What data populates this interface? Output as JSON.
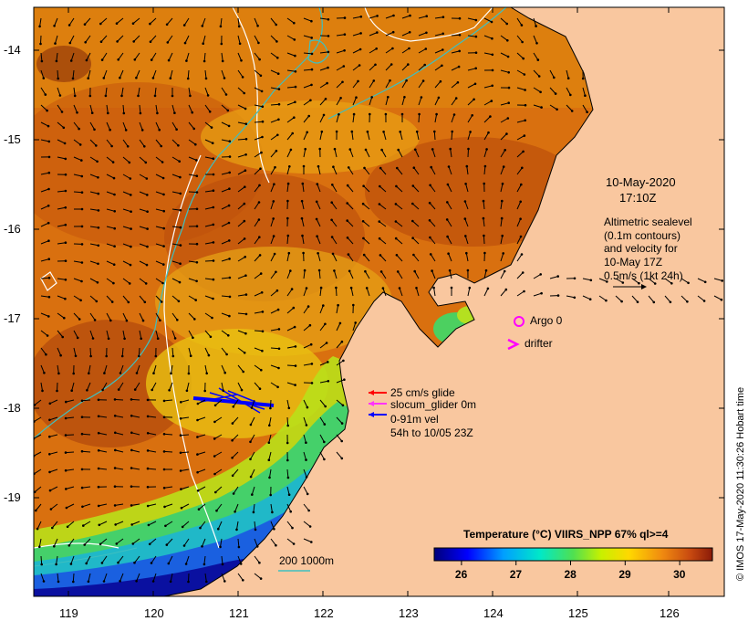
{
  "map": {
    "date": "10-May-2020",
    "time": "17:10Z",
    "altimetry_lines": [
      "Altimetric sealevel",
      "(0.1m contours)",
      "and velocity for",
      "10-May 17Z",
      "0.5m/s (1kt 24h)"
    ],
    "argo_label": "Argo 0",
    "drifter_label": "drifter",
    "glider_legend": [
      "25 cm/s glide",
      "slocum_glider 0m",
      "0-91m vel",
      "54h to 10/05 23Z"
    ],
    "depth_legend": "200  1000m",
    "credit": "© IMOS 17-May-2020 11:30:26 Hobart time",
    "colorbar": {
      "title": "Temperature (°C) VIIRS_NPP 67% ql>=4",
      "ticks": [
        "26",
        "27",
        "28",
        "29",
        "30"
      ],
      "range": [
        25.5,
        30.6
      ]
    },
    "lat_ticks": [
      "-14",
      "-15",
      "-16",
      "-17",
      "-18",
      "-19"
    ],
    "lon_ticks": [
      "119",
      "120",
      "121",
      "122",
      "123",
      "124",
      "125",
      "126"
    ],
    "colors": {
      "land": "#f9c79f",
      "warm": "#c8560e",
      "contour": "#ffffff",
      "isobath": "#3fbfbf",
      "glider_red": "#ff0000",
      "glider_magenta": "#ff33ff",
      "glider_blue": "#0000ff",
      "argo": "#ff00ff"
    }
  }
}
